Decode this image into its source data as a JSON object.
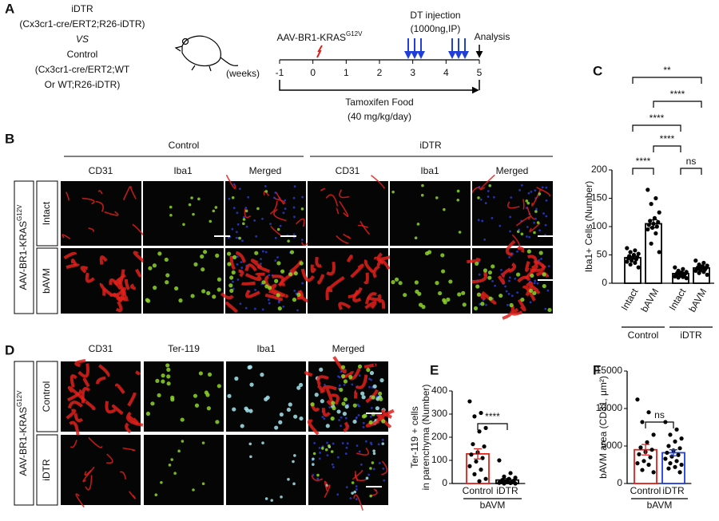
{
  "panel_letters": [
    "A",
    "B",
    "C",
    "D",
    "E",
    "F"
  ],
  "panel_a": {
    "groups": [
      "iDTR",
      "(Cx3cr1-cre/ERT2;R26-iDTR)",
      "VS",
      "Control",
      "(Cx3cr1-cre/ERT2;WT",
      "Or WT;R26-iDTR)"
    ],
    "vector": "AAV-BR1-KRAS",
    "vector_sup": "G12V",
    "dt": "DT injection",
    "dt_dose": "(1000ng,IP)",
    "analysis": "Analysis",
    "unit": "(weeks)",
    "weeks": [
      -1,
      0,
      1,
      2,
      3,
      4,
      5
    ],
    "food": "Tamoxifen Food",
    "food_dose": "(40 mg/kg/day)"
  },
  "panel_b": {
    "groups": [
      "Control",
      "iDTR"
    ],
    "columns": [
      "CD31",
      "Iba1",
      "Merged",
      "CD31",
      "Iba1",
      "Merged"
    ],
    "rows": [
      "Intact",
      "bAVM"
    ],
    "model": "AAV-BR1-KRAS",
    "model_sup": "G12V"
  },
  "panel_d": {
    "columns": [
      "CD31",
      "Ter-119",
      "Iba1",
      "Merged"
    ],
    "rows": [
      "Control",
      "iDTR"
    ],
    "model": "AAV-BR1-KRAS",
    "model_sup": "G12V"
  },
  "chart_data": [
    {
      "type": "bar",
      "ylabel": "Iba1+ Cells (Number)",
      "categories": [
        "Intact",
        "bAVM",
        "Intact",
        "bAVM"
      ],
      "groups": [
        "Control",
        "iDTR"
      ],
      "values": [
        45,
        105,
        17,
        27
      ],
      "errors": [
        2.5,
        7,
        1.5,
        2
      ],
      "points": [
        [
          62,
          58,
          55,
          52,
          50,
          48,
          46,
          45,
          44,
          42,
          40,
          38,
          36,
          33,
          28
        ],
        [
          165,
          150,
          140,
          125,
          115,
          110,
          108,
          105,
          103,
          100,
          98,
          95,
          88,
          70,
          55
        ],
        [
          28,
          25,
          22,
          20,
          19,
          18,
          17,
          16,
          15,
          14,
          13,
          12,
          11,
          10,
          9
        ],
        [
          40,
          36,
          33,
          31,
          30,
          28,
          27,
          26,
          25,
          24,
          23,
          22,
          20,
          18,
          15
        ]
      ],
      "colors": [
        "#000000",
        "#000000",
        "#000000",
        "#000000"
      ],
      "ylim": [
        0,
        200
      ],
      "yticks": [
        0,
        50,
        100,
        150,
        200
      ],
      "significance": [
        "**",
        "****",
        "****",
        "****",
        "****",
        "ns"
      ]
    },
    {
      "type": "bar",
      "ylabel": [
        "Ter-119 + cells",
        "in parenchyma  (Number)"
      ],
      "categories": [
        "Control",
        "iDTR"
      ],
      "groups": [
        "bAVM"
      ],
      "values": [
        128,
        15
      ],
      "errors": [
        22,
        6
      ],
      "points": [
        [
          355,
          305,
          290,
          240,
          225,
          170,
          160,
          135,
          125,
          110,
          95,
          75,
          60,
          40,
          20,
          10
        ],
        [
          100,
          45,
          30,
          25,
          20,
          15,
          12,
          10,
          8,
          5,
          5,
          3,
          2,
          0,
          0
        ]
      ],
      "colors": [
        "#e0201b",
        "#000000"
      ],
      "ylim": [
        0,
        400
      ],
      "yticks": [
        0,
        100,
        200,
        300,
        400
      ],
      "significance": [
        "****"
      ]
    },
    {
      "type": "bar",
      "ylabel": "bAVM area (CD31, μm²)",
      "categories": [
        "Control",
        "iDTR"
      ],
      "groups": [
        "bAVM"
      ],
      "values": [
        4500,
        4100
      ],
      "errors": [
        700,
        400
      ],
      "points": [
        [
          11200,
          9500,
          8200,
          6500,
          5500,
          4800,
          4500,
          4200,
          3900,
          3500,
          3000,
          2700,
          2500,
          1800,
          1500
        ],
        [
          8200,
          7200,
          6500,
          6000,
          5600,
          5000,
          4700,
          4400,
          4100,
          3800,
          3600,
          3300,
          3000,
          2700,
          2500,
          2200,
          2000,
          1500
        ]
      ],
      "colors": [
        "#e0201b",
        "#1f3fd8"
      ],
      "ylim": [
        0,
        15000
      ],
      "yticks": [
        0,
        5000,
        10000,
        15000
      ],
      "significance": [
        "ns"
      ]
    }
  ]
}
